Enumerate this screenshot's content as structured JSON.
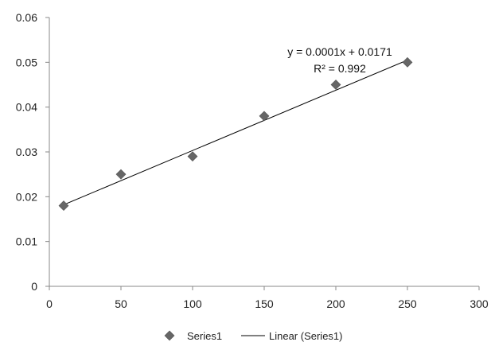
{
  "chart_data": {
    "type": "scatter",
    "title": "",
    "xlabel": "",
    "ylabel": "",
    "xlim": [
      0,
      300
    ],
    "ylim": [
      0,
      0.06
    ],
    "x_ticks": [
      "0",
      "50",
      "100",
      "150",
      "200",
      "250",
      "300"
    ],
    "y_ticks": [
      "0",
      "0.01",
      "0.02",
      "0.03",
      "0.04",
      "0.05",
      "0.06"
    ],
    "grid": false,
    "legend_position": "bottom",
    "series": [
      {
        "name": "Series1",
        "marker": "diamond",
        "color": "#666666",
        "x": [
          10,
          50,
          100,
          150,
          200,
          250
        ],
        "y": [
          0.018,
          0.025,
          0.029,
          0.038,
          0.045,
          0.05
        ]
      }
    ],
    "trendline": {
      "name": "Linear (Series1)",
      "type": "linear",
      "color": "#000000",
      "x_range": [
        10,
        250
      ],
      "y_range": [
        0.0182,
        0.0505
      ],
      "equation": "y = 0.0001x + 0.0171",
      "r_squared": "R² = 0.992"
    }
  }
}
